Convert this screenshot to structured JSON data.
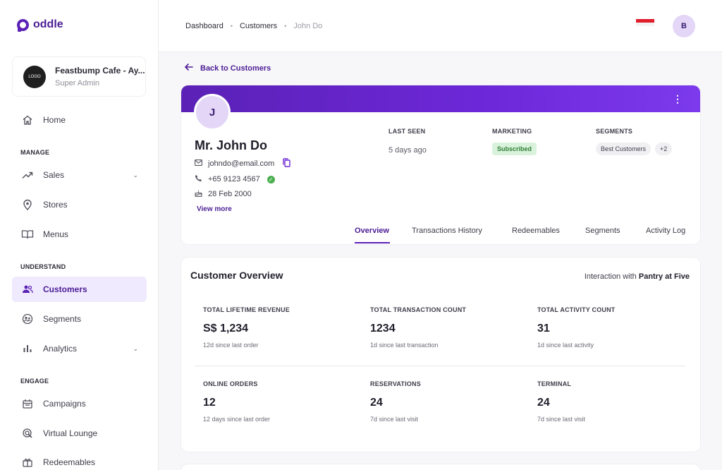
{
  "brand": {
    "name": "oddle"
  },
  "account": {
    "logo_text": "LOGO",
    "name": "Feastbump Cafe - Ay...",
    "role": "Super Admin"
  },
  "nav": {
    "home": "Home",
    "manage_label": "MANAGE",
    "sales": "Sales",
    "stores": "Stores",
    "menus": "Menus",
    "understand_label": "UNDERSTAND",
    "customers": "Customers",
    "segments": "Segments",
    "analytics": "Analytics",
    "engage_label": "ENGAGE",
    "campaigns": "Campaigns",
    "virtual_lounge": "Virtual Lounge",
    "redeemables": "Redeemables"
  },
  "breadcrumb": {
    "items": [
      "Dashboard",
      "Customers",
      "John Do"
    ]
  },
  "user_avatar": "B",
  "back_label": "Back to Customers",
  "profile": {
    "initial": "J",
    "name": "Mr. John Do",
    "email": "johndo@email.com",
    "phone": "+65 9123 4567",
    "dob": "28 Feb 2000",
    "view_more": "View more",
    "last_seen_label": "LAST SEEN",
    "last_seen_value": "5 days ago",
    "marketing_label": "MARKETING",
    "marketing_value": "Subscribed",
    "segments_label": "SEGMENTS",
    "segments_chip": "Best Customers",
    "segments_more": "+2"
  },
  "tabs": [
    "Overview",
    "Transactions History",
    "Redeemables",
    "Segments",
    "Activity Log"
  ],
  "overview": {
    "title": "Customer Overview",
    "interaction_prefix": "Interaction with",
    "interaction_store": "Pantry at Five",
    "metrics": [
      {
        "label": "TOTAL LIFETIME REVENUE",
        "value": "S$ 1,234",
        "sub": "12d since last order"
      },
      {
        "label": "TOTAL TRANSACTION COUNT",
        "value": "1234",
        "sub": "1d since last transaction"
      },
      {
        "label": "TOTAL ACTIVITY COUNT",
        "value": "31",
        "sub": "1d since last activity"
      },
      {
        "label": "ONLINE ORDERS",
        "value": "12",
        "sub": "12 days since last order"
      },
      {
        "label": "RESERVATIONS",
        "value": "24",
        "sub": "7d since last visit"
      },
      {
        "label": "TERMINAL",
        "value": "24",
        "sub": "7d since last visit"
      }
    ]
  }
}
